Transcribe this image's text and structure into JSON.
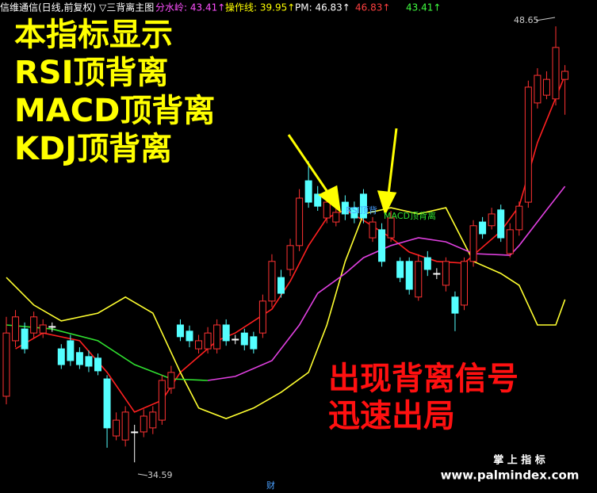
{
  "chart_data": {
    "type": "candlestick",
    "header": [
      {
        "text": "信维通信(日线,前复权) ▽三背离主图",
        "color": "#ffffff"
      },
      {
        "text": "分水岭: 43.41↑",
        "color": "#ff50ff"
      },
      {
        "text": "操作线: 39.95↑",
        "color": "#ffff00"
      },
      {
        "text": "PM: 46.83↑",
        "color": "#ffffff"
      },
      {
        "text": "46.83↑",
        "color": "#ff4040"
      },
      {
        "text": "43.41↑",
        "color": "#40ff40"
      }
    ],
    "annotations": {
      "intro": [
        "本指标显示",
        "RSI顶背离",
        "MACD顶背离",
        "KDJ顶背离"
      ],
      "signal": [
        "出现背离信号",
        "迅速出局"
      ],
      "rsi_label": "RSI顶背",
      "macd_label": "MACD顶背离",
      "high_label": "48.65",
      "low_label": "34.59",
      "bottom_char": "财",
      "brand": "掌 上 指 标",
      "site": "www.palmindex.com"
    },
    "ylim": [
      33.6,
      49.5
    ],
    "up_color": "#ff3232",
    "down_color": "#54ffff",
    "flat_color": "#ffffff",
    "candles": [
      [
        36.72,
        38.76,
        39.28,
        36.46
      ],
      [
        38.51,
        39.28,
        39.5,
        38.3
      ],
      [
        38.89,
        38.25,
        39.1,
        38.1
      ],
      [
        38.76,
        39.28,
        39.45,
        38.6
      ],
      [
        38.76,
        39.02,
        39.2,
        38.6
      ],
      [
        38.97,
        38.97,
        39.1,
        38.8
      ],
      [
        38.25,
        37.74,
        38.4,
        37.6
      ],
      [
        38.51,
        37.87,
        38.7,
        37.7
      ],
      [
        38.13,
        37.74,
        38.3,
        37.6
      ],
      [
        38.0,
        37.69,
        38.2,
        37.5
      ],
      [
        37.95,
        37.54,
        38.1,
        37.4
      ],
      [
        37.28,
        35.7,
        37.4,
        35.06
      ],
      [
        35.44,
        35.95,
        36.2,
        35.3
      ],
      [
        35.31,
        36.21,
        36.4,
        35.1
      ],
      [
        35.57,
        35.57,
        35.8,
        34.59
      ],
      [
        35.57,
        36.08,
        36.3,
        35.4
      ],
      [
        35.7,
        36.21,
        36.4,
        35.5
      ],
      [
        35.95,
        37.23,
        37.4,
        35.8
      ],
      [
        36.98,
        37.49,
        37.7,
        36.8
      ],
      [
        39.02,
        38.64,
        39.2,
        38.5
      ],
      [
        38.82,
        38.51,
        39.0,
        38.3
      ],
      [
        38.25,
        38.51,
        38.7,
        38.1
      ],
      [
        38.25,
        38.76,
        38.95,
        38.1
      ],
      [
        38.25,
        39.02,
        39.2,
        38.1
      ],
      [
        39.02,
        38.51,
        39.2,
        38.35
      ],
      [
        38.56,
        38.56,
        38.7,
        38.4
      ],
      [
        38.76,
        38.38,
        38.9,
        38.2
      ],
      [
        38.64,
        38.25,
        38.8,
        38.1
      ],
      [
        38.76,
        39.79,
        40.0,
        38.6
      ],
      [
        39.79,
        41.07,
        41.3,
        39.6
      ],
      [
        40.55,
        40.04,
        40.8,
        39.9
      ],
      [
        40.81,
        41.58,
        41.8,
        40.6
      ],
      [
        41.58,
        43.11,
        43.4,
        41.4
      ],
      [
        43.67,
        42.98,
        44.3,
        42.8
      ],
      [
        43.24,
        42.85,
        43.5,
        42.7
      ],
      [
        42.47,
        42.98,
        43.2,
        42.3
      ],
      [
        42.34,
        42.65,
        42.85,
        42.2
      ],
      [
        42.98,
        42.6,
        43.2,
        42.4
      ],
      [
        42.8,
        42.47,
        43.0,
        42.3
      ],
      [
        43.24,
        42.47,
        43.4,
        42.3
      ],
      [
        41.83,
        42.34,
        42.5,
        41.7
      ],
      [
        42.09,
        41.07,
        42.3,
        40.9
      ],
      [
        41.83,
        42.47,
        42.7,
        41.7
      ],
      [
        41.07,
        40.55,
        41.2,
        40.4
      ],
      [
        41.07,
        40.17,
        41.2,
        40.0
      ],
      [
        39.92,
        41.07,
        41.3,
        39.8
      ],
      [
        41.19,
        40.81,
        41.4,
        40.6
      ],
      [
        40.68,
        40.68,
        40.85,
        40.5
      ],
      [
        40.3,
        41.07,
        41.2,
        40.1
      ],
      [
        39.92,
        39.4,
        40.1,
        38.82
      ],
      [
        39.66,
        41.07,
        41.2,
        39.5
      ],
      [
        41.07,
        42.22,
        42.4,
        40.9
      ],
      [
        42.34,
        41.96,
        42.5,
        41.8
      ],
      [
        42.22,
        42.6,
        42.8,
        42.1
      ],
      [
        42.73,
        41.83,
        42.9,
        41.7
      ],
      [
        41.32,
        42.09,
        42.3,
        41.2
      ],
      [
        42.09,
        42.85,
        43.0,
        41.9
      ],
      [
        42.98,
        46.69,
        46.9,
        42.8
      ],
      [
        46.18,
        47.07,
        47.3,
        46.0
      ],
      [
        46.43,
        46.94,
        47.2,
        46.3
      ],
      [
        46.31,
        47.97,
        48.65,
        46.1
      ],
      [
        46.94,
        47.2,
        47.4,
        45.8
      ]
    ],
    "lines": [
      {
        "color": "#ff2020",
        "x": [
          1,
          4,
          8,
          11,
          14,
          17,
          19,
          23,
          25,
          29,
          31,
          33,
          35,
          37,
          39,
          42,
          44,
          47,
          50,
          52,
          54,
          56,
          58,
          61
        ],
        "values": [
          38.25,
          38.76,
          38.51,
          37.49,
          36.21,
          36.59,
          37.49,
          38.51,
          38.76,
          39.53,
          40.43,
          41.58,
          42.47,
          42.73,
          42.39,
          41.83,
          41.37,
          41.07,
          41.01,
          41.53,
          42.04,
          42.85,
          44.9,
          47.07
        ]
      },
      {
        "color": "#ffff30",
        "x": [
          0,
          3,
          6,
          10,
          13,
          16,
          19,
          21,
          24,
          27,
          30,
          33,
          35,
          37,
          39,
          42,
          45,
          48,
          51,
          54,
          56,
          58,
          60,
          61
        ],
        "values": [
          40.55,
          39.66,
          39.15,
          39.4,
          39.92,
          39.4,
          37.49,
          36.34,
          36.0,
          36.34,
          36.85,
          37.49,
          39.02,
          41.07,
          42.6,
          42.8,
          42.6,
          42.8,
          41.07,
          40.68,
          40.3,
          39.02,
          39.02,
          39.84
        ]
      },
      {
        "color": "#30e030",
        "x": [
          0,
          5,
          10,
          14,
          18,
          22
        ],
        "values": [
          39.02,
          38.89,
          38.51,
          37.74,
          37.28,
          37.23
        ]
      },
      {
        "color": "#e040e0",
        "x": [
          22,
          25,
          29,
          32,
          34,
          37,
          39,
          42,
          45,
          48,
          51,
          55,
          56,
          59,
          61
        ],
        "values": [
          37.23,
          37.36,
          37.87,
          39.02,
          40.04,
          40.68,
          41.19,
          41.58,
          41.83,
          41.7,
          41.32,
          41.27,
          41.58,
          42.73,
          43.49
        ]
      }
    ]
  }
}
